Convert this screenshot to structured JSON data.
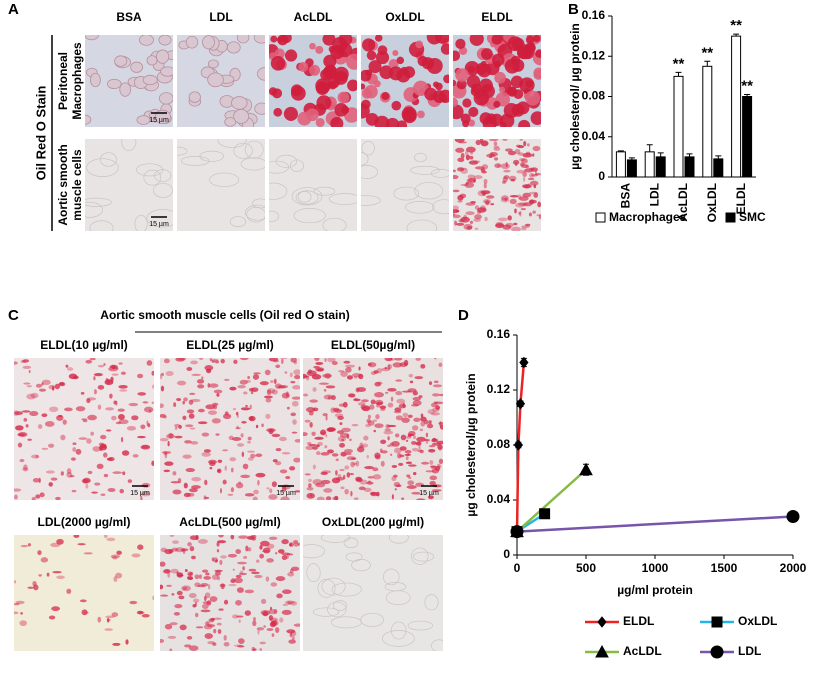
{
  "panel_labels": [
    "A",
    "B",
    "C",
    "D"
  ],
  "panel_a": {
    "columns": [
      "BSA",
      "LDL",
      "AcLDL",
      "OxLDL",
      "ELDL"
    ],
    "side_label": "Oil Red O Stain",
    "row_labels": [
      [
        "Peritoneal",
        "Macrophages"
      ],
      [
        "Aortic smooth",
        "muscle cells"
      ]
    ],
    "scale_bar": "15 µm"
  },
  "panel_c": {
    "title": "Aortic smooth muscle cells (Oil red O stain)",
    "images": [
      "ELDL(10 µg/ml)",
      "ELDL(25 µg/ml)",
      "ELDL(50µg/ml)",
      "LDL(2000 µg/ml)",
      "AcLDL(500 µg/ml)",
      "OxLDL(200 µg/ml)"
    ],
    "scale_bar": "15 µm"
  },
  "chart_data": [
    {
      "type": "bar",
      "y_label": "µg cholesterol/ µg protein",
      "categories": [
        "BSA",
        "LDL",
        "AcLDL",
        "OxLDL",
        "ELDL"
      ],
      "series": [
        {
          "name": "Macrophages",
          "color": "#ffffff",
          "values": [
            0.025,
            0.025,
            0.1,
            0.11,
            0.14
          ],
          "errors": [
            0.001,
            0.007,
            0.004,
            0.005,
            0.002
          ]
        },
        {
          "name": "SMC",
          "color": "#000000",
          "values": [
            0.017,
            0.02,
            0.02,
            0.018,
            0.08
          ],
          "errors": [
            0.002,
            0.004,
            0.003,
            0.003,
            0.002
          ]
        }
      ],
      "annotations": [
        "**",
        "**",
        "**",
        "**"
      ],
      "ylim": [
        0,
        0.16
      ],
      "yticks": [
        0,
        0.04,
        0.08,
        0.12,
        0.16
      ],
      "legend": "bottom"
    },
    {
      "type": "line",
      "y_label": "µg cholesterol/µg protein",
      "x_label": "µg/ml protein",
      "series": [
        {
          "name": "ELDL",
          "color": "#ee2222",
          "marker": "diamond",
          "x": [
            0,
            10,
            25,
            50
          ],
          "values": [
            0.017,
            0.08,
            0.11,
            0.14
          ],
          "errors": [
            0.003,
            0.002,
            0.002,
            0.003
          ]
        },
        {
          "name": "OxLDL",
          "color": "#22b5e6",
          "marker": "square",
          "x": [
            0,
            200
          ],
          "values": [
            0.017,
            0.03
          ],
          "errors": [
            0.003,
            0.002
          ]
        },
        {
          "name": "AcLDL",
          "color": "#88bb44",
          "marker": "triangle",
          "x": [
            0,
            500
          ],
          "values": [
            0.017,
            0.062
          ],
          "errors": [
            0.003,
            0.004
          ]
        },
        {
          "name": "LDL",
          "color": "#7755aa",
          "marker": "circle",
          "x": [
            0,
            2000
          ],
          "values": [
            0.017,
            0.028
          ],
          "errors": [
            0.003,
            0.003
          ]
        }
      ],
      "xlim": [
        0,
        2000
      ],
      "xticks": [
        0,
        500,
        1000,
        1500,
        2000
      ],
      "ylim": [
        0,
        0.16
      ],
      "yticks": [
        0,
        0.04,
        0.08,
        0.12,
        0.16
      ],
      "legend": "bottom"
    }
  ]
}
